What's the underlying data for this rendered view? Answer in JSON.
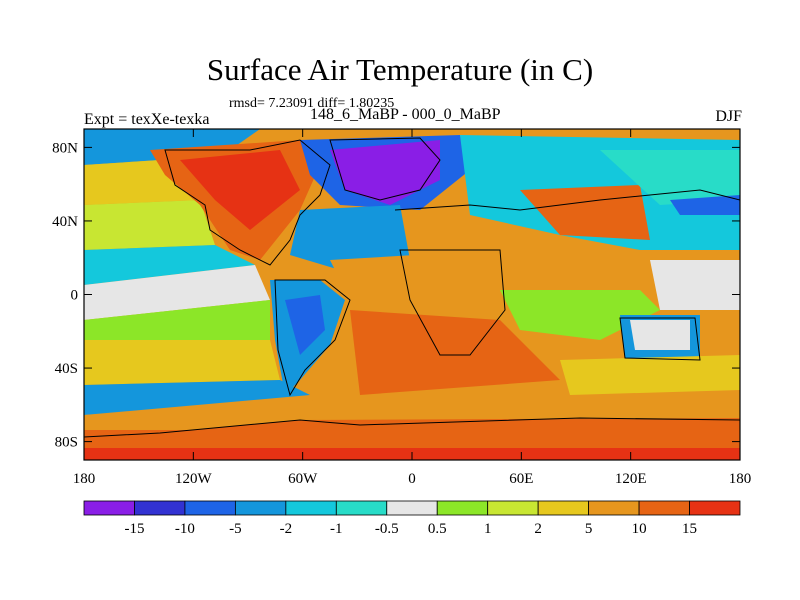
{
  "title": "Surface Air Temperature (in C)",
  "stats": "rmsd= 7.23091 diff= 1.80235",
  "experiment": "Expt = texXe-texka",
  "period": "148_6_MaBP - 000_0_MaBP",
  "season": "DJF",
  "map": {
    "lon_range": [
      -180,
      180
    ],
    "lat_range": [
      -90,
      90
    ],
    "lon_ticks": [
      {
        "value": -180,
        "label": "180"
      },
      {
        "value": -120,
        "label": "120W"
      },
      {
        "value": -60,
        "label": "60W"
      },
      {
        "value": 0,
        "label": "0"
      },
      {
        "value": 60,
        "label": "60E"
      },
      {
        "value": 120,
        "label": "120E"
      },
      {
        "value": 180,
        "label": "180"
      }
    ],
    "lat_ticks": [
      {
        "value": 80,
        "label": "80N"
      },
      {
        "value": 40,
        "label": "40N"
      },
      {
        "value": 0,
        "label": "0"
      },
      {
        "value": -40,
        "label": "40S"
      },
      {
        "value": -80,
        "label": "80S"
      }
    ]
  },
  "colorbar": {
    "colors": [
      "#8a1ee6",
      "#3232d2",
      "#1e64e6",
      "#1496dc",
      "#14c8dc",
      "#28dcc8",
      "#e6e6e6",
      "#8ce628",
      "#c8e632",
      "#e6c81e",
      "#e6961e",
      "#e66414",
      "#e63214"
    ],
    "labels": [
      "-15",
      "-10",
      "-5",
      "-2",
      "-1",
      "-0.5",
      "0.5",
      "1",
      "2",
      "5",
      "10",
      "15"
    ]
  }
}
